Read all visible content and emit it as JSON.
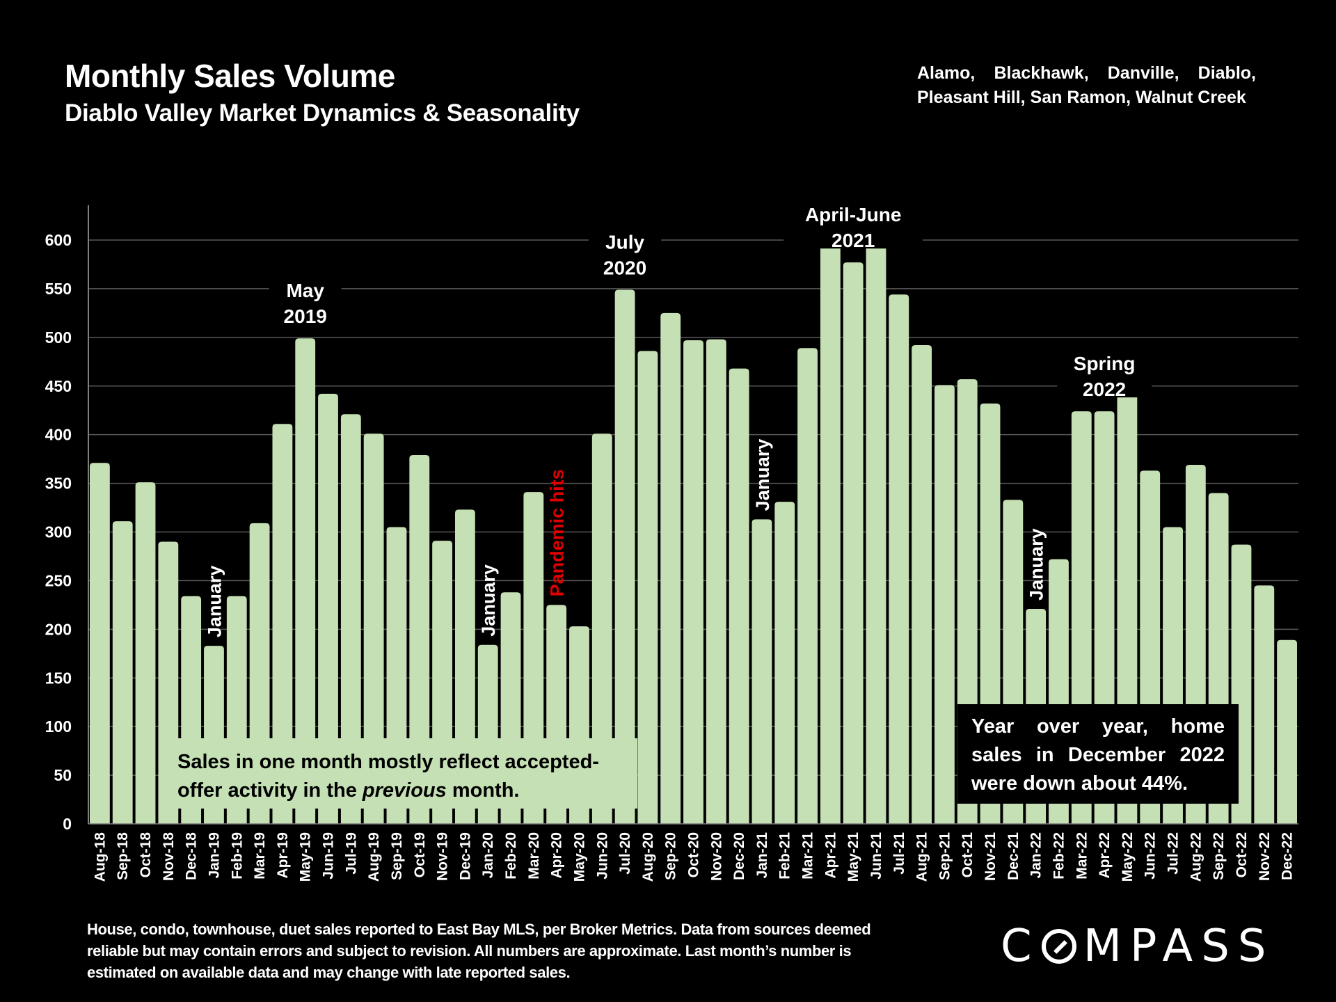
{
  "header": {
    "title": "Monthly Sales Volume",
    "subtitle": "Diablo Valley Market Dynamics & Seasonality",
    "areas_line1": "Alamo, Blackhawk, Danville, Diablo,",
    "areas_line2": "Pleasant Hill, San Ramon, Walnut Creek"
  },
  "chart_data": {
    "type": "bar",
    "title": "Monthly Sales Volume",
    "subtitle": "Diablo Valley Market Dynamics & Seasonality",
    "xlabel": "",
    "ylabel": "",
    "ylim": [
      0,
      600
    ],
    "yticks": [
      0,
      50,
      100,
      150,
      200,
      250,
      300,
      350,
      400,
      450,
      500,
      550,
      600
    ],
    "grid": true,
    "bar_color": "#c5e0b4",
    "categories": [
      "Aug-18",
      "Sep-18",
      "Oct-18",
      "Nov-18",
      "Dec-18",
      "Jan-19",
      "Feb-19",
      "Mar-19",
      "Apr-19",
      "May-19",
      "Jun-19",
      "Jul-19",
      "Aug-19",
      "Sep-19",
      "Oct-19",
      "Nov-19",
      "Dec-19",
      "Jan-20",
      "Feb-20",
      "Mar-20",
      "Apr-20",
      "May-20",
      "Jun-20",
      "Jul-20",
      "Aug-20",
      "Sep-20",
      "Oct-20",
      "Nov-20",
      "Dec-20",
      "Jan-21",
      "Feb-21",
      "Mar-21",
      "Apr-21",
      "May-21",
      "Jun-21",
      "Jul-21",
      "Aug-21",
      "Sep-21",
      "Oct-21",
      "Nov-21",
      "Dec-21",
      "Jan-22",
      "Feb-22",
      "Mar-22",
      "Apr-22",
      "May-22",
      "Jun-22",
      "Jul-22",
      "Aug-22",
      "Sep-22",
      "Oct-22",
      "Nov-22",
      "Dec-22"
    ],
    "values": [
      371,
      311,
      351,
      290,
      234,
      183,
      234,
      309,
      411,
      499,
      442,
      421,
      401,
      305,
      379,
      291,
      323,
      184,
      238,
      341,
      225,
      203,
      401,
      549,
      486,
      525,
      497,
      498,
      468,
      313,
      331,
      489,
      626,
      577,
      622,
      544,
      492,
      451,
      457,
      432,
      333,
      221,
      272,
      424,
      424,
      451,
      363,
      305,
      369,
      340,
      287,
      245,
      189
    ],
    "annotations": [
      {
        "category": "May-19",
        "lines": [
          "May",
          "2019"
        ]
      },
      {
        "category": "Jul-20",
        "lines": [
          "July",
          "2020"
        ]
      },
      {
        "category": "May-21",
        "lines": [
          "April-June",
          "2021"
        ]
      },
      {
        "category": "Apr-22",
        "lines": [
          "Spring",
          "2022"
        ]
      }
    ],
    "vertical_labels": [
      {
        "category": "Jan-19",
        "text": "January",
        "color": "#ffffff"
      },
      {
        "category": "Jan-20",
        "text": "January",
        "color": "#ffffff"
      },
      {
        "category": "Apr-20",
        "text": "Pandemic hits",
        "color": "#e00000"
      },
      {
        "category": "Jan-21",
        "text": "January",
        "color": "#ffffff"
      },
      {
        "category": "Jan-22",
        "text": "January",
        "color": "#ffffff"
      }
    ]
  },
  "notes": {
    "left_line1": "Sales in one month mostly reflect accepted-",
    "left_line2_pre": "offer activity in the ",
    "left_line2_em": "previous",
    "left_line2_post": " month.",
    "right_line1": "Year over year, home",
    "right_line2": "sales in December 2022",
    "right_line3": "were down about 44%."
  },
  "footer": {
    "line1": "House, condo, townhouse, duet sales reported to East Bay MLS, per Broker Metrics. Data from sources deemed",
    "line2": "reliable but may contain errors and subject to revision. All numbers are approximate. Last month’s number is",
    "line3": "estimated on available data and may change with late reported sales."
  },
  "logo": {
    "pre": "C",
    "post": "MPASS",
    "icon": "compass-o-slash-icon"
  }
}
